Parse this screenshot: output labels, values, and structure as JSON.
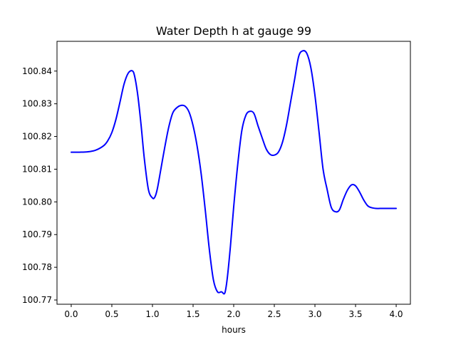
{
  "chart_data": {
    "type": "line",
    "title": "Water Depth h at gauge 99",
    "xlabel": "hours",
    "ylabel": "",
    "xlim": [
      -0.175,
      4.175
    ],
    "ylim": [
      100.7687,
      100.8491
    ],
    "xticks": [
      0.0,
      0.5,
      1.0,
      1.5,
      2.0,
      2.5,
      3.0,
      3.5,
      4.0
    ],
    "xtick_labels": [
      "0.0",
      "0.5",
      "1.0",
      "1.5",
      "2.0",
      "2.5",
      "3.0",
      "3.5",
      "4.0"
    ],
    "yticks": [
      100.77,
      100.78,
      100.79,
      100.8,
      100.81,
      100.82,
      100.83,
      100.84
    ],
    "ytick_labels": [
      "100.77",
      "100.78",
      "100.79",
      "100.80",
      "100.81",
      "100.82",
      "100.83",
      "100.84"
    ],
    "grid": false,
    "series": [
      {
        "color": "#0000ff",
        "x": [
          0.0,
          0.1,
          0.2,
          0.3,
          0.4,
          0.45,
          0.5,
          0.55,
          0.6,
          0.65,
          0.7,
          0.75,
          0.78,
          0.82,
          0.86,
          0.9,
          0.95,
          1.0,
          1.03,
          1.06,
          1.1,
          1.15,
          1.2,
          1.25,
          1.3,
          1.35,
          1.4,
          1.45,
          1.5,
          1.55,
          1.6,
          1.65,
          1.7,
          1.75,
          1.8,
          1.85,
          1.89,
          1.92,
          1.96,
          2.0,
          2.05,
          2.1,
          2.15,
          2.2,
          2.25,
          2.3,
          2.35,
          2.4,
          2.45,
          2.5,
          2.55,
          2.6,
          2.65,
          2.7,
          2.75,
          2.8,
          2.85,
          2.9,
          2.95,
          3.0,
          3.05,
          3.1,
          3.15,
          3.2,
          3.25,
          3.3,
          3.35,
          3.4,
          3.45,
          3.5,
          3.55,
          3.6,
          3.65,
          3.7,
          3.75,
          3.8,
          3.85,
          3.9,
          3.95,
          4.0
        ],
        "y": [
          100.8152,
          100.8152,
          100.8153,
          100.8158,
          100.8172,
          100.8187,
          100.8212,
          100.8252,
          100.8305,
          100.836,
          100.8393,
          100.8401,
          100.8385,
          100.8325,
          100.8235,
          100.8132,
          100.8038,
          100.8012,
          100.8015,
          100.804,
          100.8095,
          100.8165,
          100.8228,
          100.8272,
          100.8288,
          100.8295,
          100.8293,
          100.8275,
          100.8233,
          100.817,
          100.8085,
          100.7975,
          100.7855,
          100.7762,
          100.7725,
          100.7725,
          100.7721,
          100.7765,
          100.7865,
          100.7985,
          100.8115,
          100.8218,
          100.8265,
          100.8277,
          100.827,
          100.8232,
          100.8196,
          100.8162,
          100.8145,
          100.8143,
          100.8152,
          100.8182,
          100.8235,
          100.8305,
          100.8375,
          100.8445,
          100.8462,
          100.8454,
          100.841,
          100.8326,
          100.8215,
          100.81,
          100.8038,
          100.7984,
          100.797,
          100.7975,
          100.8008,
          100.8036,
          100.8052,
          100.8049,
          100.803,
          100.8006,
          100.7988,
          100.7982,
          100.798,
          100.798,
          100.798,
          100.798,
          100.798,
          100.798
        ]
      }
    ]
  }
}
